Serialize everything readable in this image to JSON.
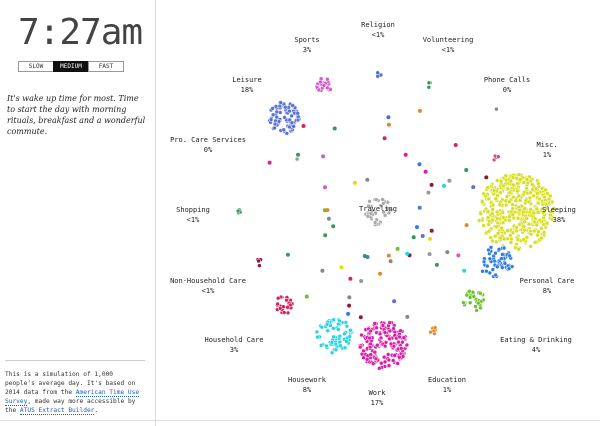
{
  "clock": "7:27am",
  "speed": {
    "options": [
      "SLOW",
      "MEDIUM",
      "FAST"
    ],
    "selected": "MEDIUM"
  },
  "description": "It's wake up time for most. Time to start the day with morning rituals, breakfast and a wonderful commute.",
  "footer": {
    "text1": "This is a simulation of 1,000 people's average day. It's based on 2014 data from the ",
    "link1": "American Time Use Survey",
    "text2": ", made way more accessible by the ",
    "link2": "ATUS Extract Builder",
    "text3": "."
  },
  "activities": [
    {
      "name": "Religion",
      "pct": "<1%",
      "color": "#4a6fd0"
    },
    {
      "name": "Volunteering",
      "pct": "<1%",
      "color": "#2e9a5b"
    },
    {
      "name": "Phone Calls",
      "pct": "0%",
      "color": "#888888"
    },
    {
      "name": "Misc.",
      "pct": "1%",
      "color": "#d64a8a"
    },
    {
      "name": "Sleeping",
      "pct": "38%",
      "color": "#d8df1e"
    },
    {
      "name": "Personal Care",
      "pct": "8%",
      "color": "#2f7de0"
    },
    {
      "name": "Eating & Drinking",
      "pct": "4%",
      "color": "#6cc12c"
    },
    {
      "name": "Education",
      "pct": "1%",
      "color": "#e08a2c"
    },
    {
      "name": "Work",
      "pct": "17%",
      "color": "#d91ea8"
    },
    {
      "name": "Housework",
      "pct": "8%",
      "color": "#26d5e2"
    },
    {
      "name": "Household Care",
      "pct": "3%",
      "color": "#d0285e"
    },
    {
      "name": "Non-Household Care",
      "pct": "<1%",
      "color": "#8a1a3a"
    },
    {
      "name": "Shopping",
      "pct": "<1%",
      "color": "#3a9a5a"
    },
    {
      "name": "Pro. Care Services",
      "pct": "0%",
      "color": "#999999"
    },
    {
      "name": "Leisure",
      "pct": "18%",
      "color": "#5a72d8"
    },
    {
      "name": "Sports",
      "pct": "3%",
      "color": "#d05ac8"
    }
  ],
  "center_label": "Traveling",
  "center_color": "#aaaaaa"
}
